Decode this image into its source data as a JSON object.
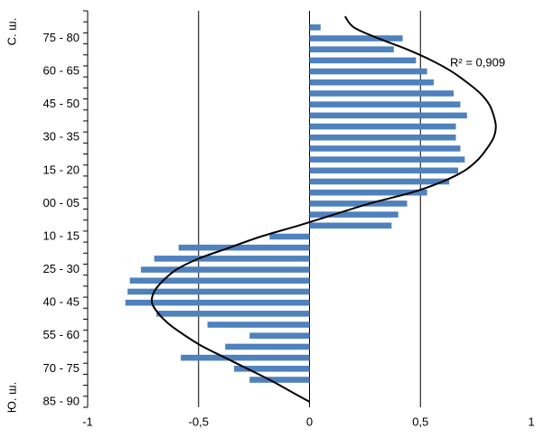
{
  "chart_data": {
    "type": "bar",
    "orientation": "horizontal",
    "categories": [
      null,
      null,
      "75 - 80",
      null,
      null,
      "60 - 65",
      null,
      null,
      "45 - 50",
      null,
      null,
      "30 - 35",
      null,
      null,
      "15 - 20",
      null,
      null,
      "00 - 05",
      null,
      null,
      "10 - 15",
      null,
      null,
      "25 - 30",
      null,
      null,
      "40 - 45",
      null,
      null,
      "55 - 60",
      null,
      null,
      "70 - 75",
      null,
      null,
      "85 - 90"
    ],
    "values": [
      null,
      0.05,
      0.42,
      0.38,
      0.48,
      0.53,
      0.56,
      0.65,
      0.68,
      0.71,
      0.66,
      0.66,
      0.68,
      0.7,
      0.67,
      0.63,
      0.53,
      0.44,
      0.4,
      0.37,
      -0.18,
      -0.59,
      -0.7,
      -0.76,
      -0.81,
      -0.82,
      -0.83,
      -0.69,
      -0.46,
      -0.27,
      -0.38,
      -0.58,
      -0.34,
      -0.27,
      null,
      null
    ],
    "color": "#4f81bd",
    "fit": {
      "color": "#000000",
      "values": [
        0.16,
        0.2,
        0.31,
        0.44,
        0.55,
        0.64,
        0.71,
        0.77,
        0.81,
        0.83,
        0.84,
        0.83,
        0.8,
        0.76,
        0.7,
        0.6,
        0.46,
        0.27,
        0.11,
        -0.05,
        -0.22,
        -0.36,
        -0.5,
        -0.6,
        -0.66,
        -0.7,
        -0.71,
        -0.68,
        -0.63,
        -0.56,
        -0.48,
        -0.38,
        -0.28,
        -0.18,
        -0.09,
        0
      ]
    },
    "annotation": "R² = 0,909",
    "group_labels": [
      "С. ш.",
      "Ю. ш."
    ],
    "xlim": [
      -1,
      1
    ],
    "xticks": [
      -1,
      {
        "value": -0.5,
        "label": "-0,5"
      },
      0,
      {
        "value": 0.5,
        "label": "0,5"
      },
      1
    ],
    "grid": true
  }
}
